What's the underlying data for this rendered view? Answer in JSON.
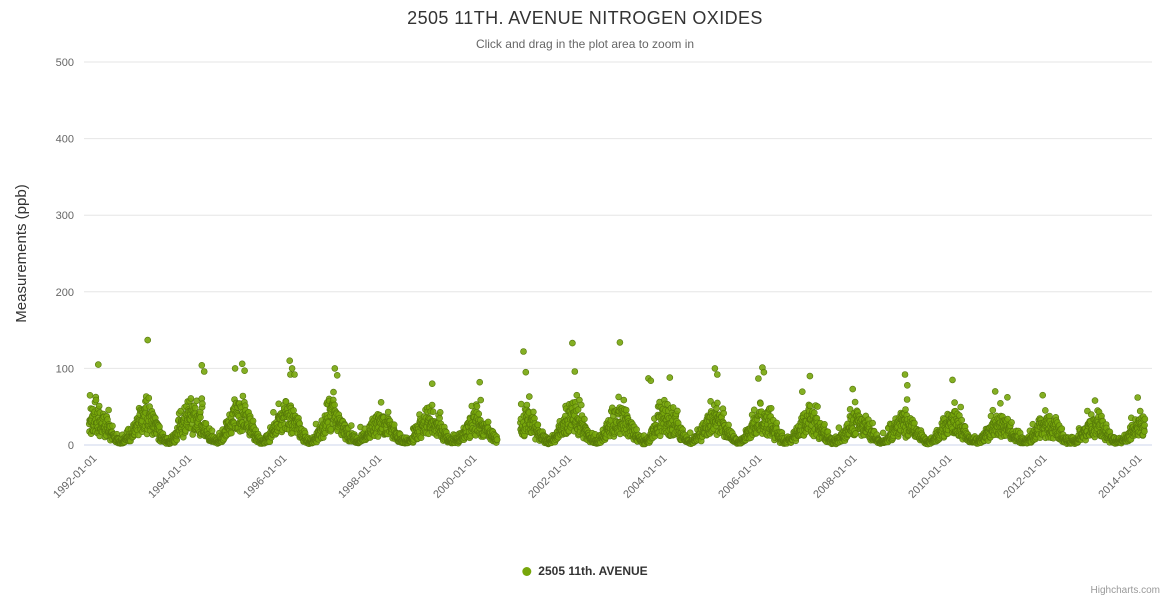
{
  "credits": "Highcharts.com",
  "legend": {
    "label": "2505 11th. AVENUE"
  },
  "chart_data": {
    "type": "scatter",
    "title": "2505 11TH. AVENUE NITROGEN OXIDES",
    "subtitle": "Click and drag in the plot area to zoom in",
    "series_name": "2505 11th. AVENUE",
    "ylabel": "Measurements (ppb)",
    "ylim": [
      0,
      500
    ],
    "yticks": [
      0,
      100,
      200,
      300,
      400,
      500
    ],
    "xticks": [
      "1992-01-01",
      "1994-01-01",
      "1996-01-01",
      "1998-01-01",
      "2000-01-01",
      "2002-01-01",
      "2004-01-01",
      "2006-01-01",
      "2008-01-01",
      "2010-01-01",
      "2012-01-01",
      "2014-01-01"
    ],
    "xtick_years": [
      1992,
      1994,
      1996,
      1998,
      2000,
      2002,
      2004,
      2006,
      2008,
      2010,
      2012,
      2014
    ],
    "x_start": 1991.83,
    "x_end": 2014.05,
    "x_axis_min": 1991.72,
    "x_axis_max": 2014.2,
    "step_years": 0.0055,
    "gaps": [
      [
        2000.42,
        2000.9
      ]
    ],
    "marker_color": "#77a60b",
    "marker_line_color": "#55770a",
    "grid_color": "#e6e6e6",
    "axis_line_color": "#ccd6eb",
    "label_color": "#666666",
    "title_color": "#333333",
    "value_floor": 1,
    "summer_base": 3,
    "winter_amp": 30,
    "winter_intensity": [
      1.0,
      1.15,
      1.1,
      1.2,
      1.2,
      0.9,
      0.85,
      0.9,
      0.8,
      1.0,
      1.05,
      1.1,
      0.9,
      1.0,
      0.95,
      0.9,
      0.85,
      0.8,
      0.8,
      0.75,
      0.7,
      0.65,
      0.75
    ],
    "outliers": [
      [
        1992.02,
        105
      ],
      [
        1993.06,
        137
      ],
      [
        1994.2,
        104
      ],
      [
        1994.25,
        96
      ],
      [
        1994.9,
        100
      ],
      [
        1995.05,
        106
      ],
      [
        1995.1,
        97
      ],
      [
        1996.05,
        110
      ],
      [
        1996.1,
        100
      ],
      [
        1996.15,
        92
      ],
      [
        1997.0,
        100
      ],
      [
        1997.05,
        91
      ],
      [
        1999.05,
        80
      ],
      [
        2000.05,
        82
      ],
      [
        2000.97,
        122
      ],
      [
        2001.02,
        95
      ],
      [
        2002.0,
        133
      ],
      [
        2002.05,
        96
      ],
      [
        2003.0,
        134
      ],
      [
        2003.6,
        87
      ],
      [
        2003.65,
        84
      ],
      [
        2004.05,
        88
      ],
      [
        2005.0,
        100
      ],
      [
        2005.05,
        92
      ],
      [
        2006.0,
        101
      ],
      [
        2006.03,
        95
      ],
      [
        2007.0,
        90
      ],
      [
        2007.9,
        73
      ],
      [
        2009.0,
        92
      ],
      [
        2009.05,
        78
      ],
      [
        2010.0,
        85
      ],
      [
        2010.9,
        70
      ],
      [
        2011.9,
        65
      ],
      [
        2013.0,
        58
      ],
      [
        2013.9,
        62
      ]
    ]
  }
}
